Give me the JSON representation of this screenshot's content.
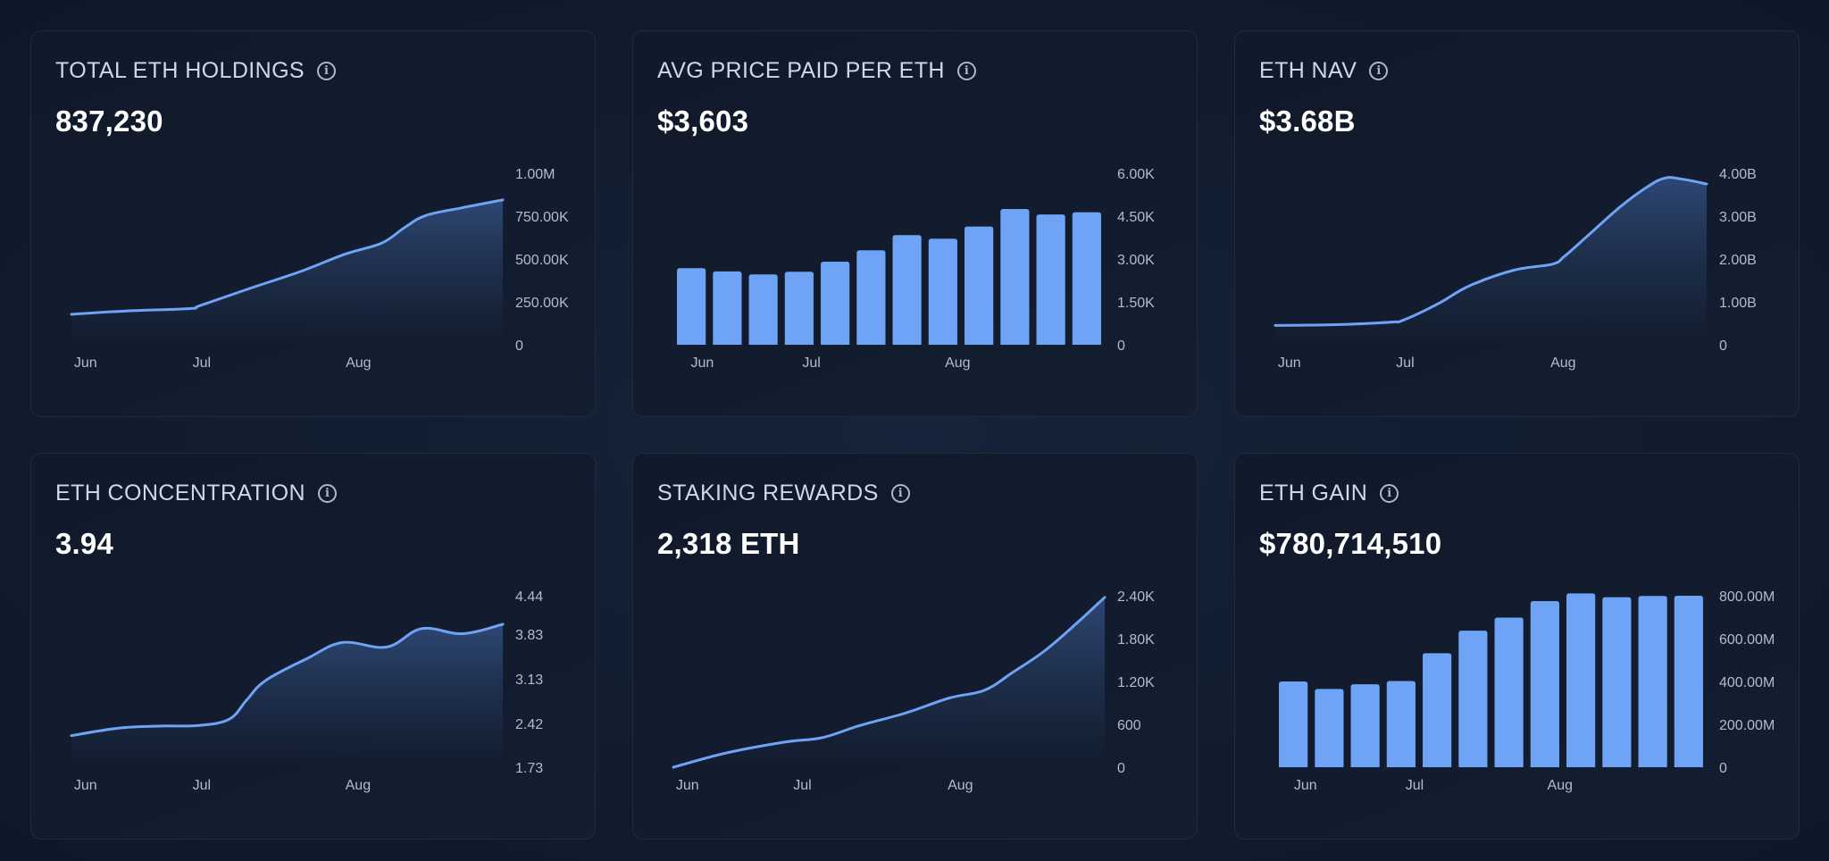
{
  "colors": {
    "accent": "#6fa3f5",
    "area_top": "#2f4a78",
    "area_bottom": "#121c2e",
    "tick_text": "#b4bcc9",
    "title_text": "#cfd8e6",
    "value_text": "#ffffff"
  },
  "cards": [
    {
      "id": "total-eth-holdings",
      "title": "TOTAL ETH HOLDINGS",
      "info_icon": "info-icon",
      "value": "837,230"
    },
    {
      "id": "avg-price-paid-per-eth",
      "title": "AVG PRICE PAID PER ETH",
      "info_icon": "info-icon",
      "value": "$3,603"
    },
    {
      "id": "eth-nav",
      "title": "ETH NAV",
      "info_icon": "info-icon",
      "value": "$3.68B"
    },
    {
      "id": "eth-concentration",
      "title": "ETH CONCENTRATION",
      "info_icon": "info-icon",
      "value": "3.94"
    },
    {
      "id": "staking-rewards",
      "title": "STAKING REWARDS",
      "info_icon": "info-icon",
      "value": "2,318 ETH"
    },
    {
      "id": "eth-gain",
      "title": "ETH GAIN",
      "info_icon": "info-icon",
      "value": "$780,714,510"
    }
  ],
  "chart_data": [
    {
      "type": "area",
      "title": "TOTAL ETH HOLDINGS",
      "x_domain": [
        0,
        1
      ],
      "x": [
        0,
        0.127,
        0.274,
        0.298,
        0.413,
        0.536,
        0.634,
        0.72,
        0.773,
        0.822,
        0.904,
        1.0
      ],
      "values": [
        178000,
        197000,
        211000,
        228000,
        328000,
        432000,
        528000,
        594000,
        685000,
        754000,
        798000,
        845000
      ],
      "ylim": [
        0,
        1000000
      ],
      "yticks": [
        0,
        250000,
        500000,
        750000,
        1000000
      ],
      "ytick_labels": [
        "0",
        "250.00K",
        "500.00K",
        "750.00K",
        "1.00M"
      ],
      "xticks": [
        0.01,
        0.285,
        0.64
      ],
      "xtick_labels": [
        "Jun",
        "Jul",
        "Aug"
      ],
      "grid": false,
      "legend": "none"
    },
    {
      "type": "bar",
      "title": "AVG PRICE PAID PER ETH",
      "x_domain": [
        0,
        1
      ],
      "values": [
        2680,
        2565,
        2460,
        2555,
        2905,
        3305,
        3835,
        3710,
        4135,
        4750,
        4560,
        4635
      ],
      "ylim": [
        0,
        6000
      ],
      "yticks": [
        0,
        1500,
        3000,
        4500,
        6000
      ],
      "ytick_labels": [
        "0",
        "1.50K",
        "3.00K",
        "4.50K",
        "6.00K"
      ],
      "xticks": [
        0.067,
        0.32,
        0.659
      ],
      "xtick_labels": [
        "Jun",
        "Jul",
        "Aug"
      ],
      "grid": false,
      "legend": "none"
    },
    {
      "type": "area",
      "title": "ETH NAV",
      "x_domain": [
        0,
        1
      ],
      "x": [
        0,
        0.105,
        0.174,
        0.27,
        0.298,
        0.38,
        0.449,
        0.553,
        0.642,
        0.67,
        0.725,
        0.8,
        0.862,
        0.904,
        0.945,
        1.0
      ],
      "values": [
        0.45,
        0.46,
        0.48,
        0.53,
        0.58,
        0.97,
        1.37,
        1.74,
        1.88,
        2.06,
        2.55,
        3.22,
        3.68,
        3.89,
        3.86,
        3.75
      ],
      "unit": "B",
      "ylim": [
        0,
        4
      ],
      "yticks": [
        0,
        1,
        2,
        3,
        4
      ],
      "ytick_labels": [
        "0",
        "1.00B",
        "2.00B",
        "3.00B",
        "4.00B"
      ],
      "xticks": [
        0.01,
        0.284,
        0.642
      ],
      "xtick_labels": [
        "Jun",
        "Jul",
        "Aug"
      ],
      "grid": false,
      "legend": "none"
    },
    {
      "type": "area",
      "title": "ETH CONCENTRATION",
      "x_domain": [
        0,
        1
      ],
      "x": [
        0,
        0.112,
        0.208,
        0.296,
        0.366,
        0.406,
        0.45,
        0.547,
        0.628,
        0.731,
        0.812,
        0.907,
        1.0
      ],
      "values": [
        2.23,
        2.35,
        2.38,
        2.39,
        2.49,
        2.79,
        3.1,
        3.45,
        3.7,
        3.63,
        3.92,
        3.84,
        3.99
      ],
      "ylim": [
        1.73,
        4.44
      ],
      "yticks": [
        1.73,
        2.42,
        3.13,
        3.83,
        4.44
      ],
      "ytick_labels": [
        "1.73",
        "2.42",
        "3.13",
        "3.83",
        "4.44"
      ],
      "xticks": [
        0.01,
        0.285,
        0.639
      ],
      "xtick_labels": [
        "Jun",
        "Jul",
        "Aug"
      ],
      "grid": false,
      "legend": "none"
    },
    {
      "type": "area",
      "title": "STAKING REWARDS",
      "x_domain": [
        0,
        1
      ],
      "x": [
        0,
        0.123,
        0.256,
        0.345,
        0.433,
        0.537,
        0.64,
        0.721,
        0.788,
        0.861,
        0.935,
        1.0
      ],
      "values": [
        0,
        200,
        350,
        414,
        585,
        756,
        969,
        1076,
        1332,
        1631,
        2015,
        2378
      ],
      "ylim": [
        0,
        2400
      ],
      "yticks": [
        0,
        600,
        1200,
        1800,
        2400
      ],
      "ytick_labels": [
        "0",
        "600",
        "1.20K",
        "1.80K",
        "2.40K"
      ],
      "xticks": [
        0.01,
        0.282,
        0.64
      ],
      "xtick_labels": [
        "Jun",
        "Jul",
        "Aug"
      ],
      "grid": false,
      "legend": "none"
    },
    {
      "type": "bar",
      "title": "ETH GAIN",
      "x_domain": [
        0,
        1
      ],
      "values": [
        400000000,
        365000000,
        387000000,
        402000000,
        532000000,
        637000000,
        698000000,
        775000000,
        811000000,
        793000000,
        799000000,
        800000000
      ],
      "ylim": [
        0,
        800000000
      ],
      "yticks": [
        0,
        200000000,
        400000000,
        600000000,
        800000000
      ],
      "ytick_labels": [
        "0",
        "200.00M",
        "400.00M",
        "600.00M",
        "800.00M"
      ],
      "xticks": [
        0.07,
        0.323,
        0.66
      ],
      "xtick_labels": [
        "Jun",
        "Jul",
        "Aug"
      ],
      "grid": false,
      "legend": "none"
    }
  ]
}
